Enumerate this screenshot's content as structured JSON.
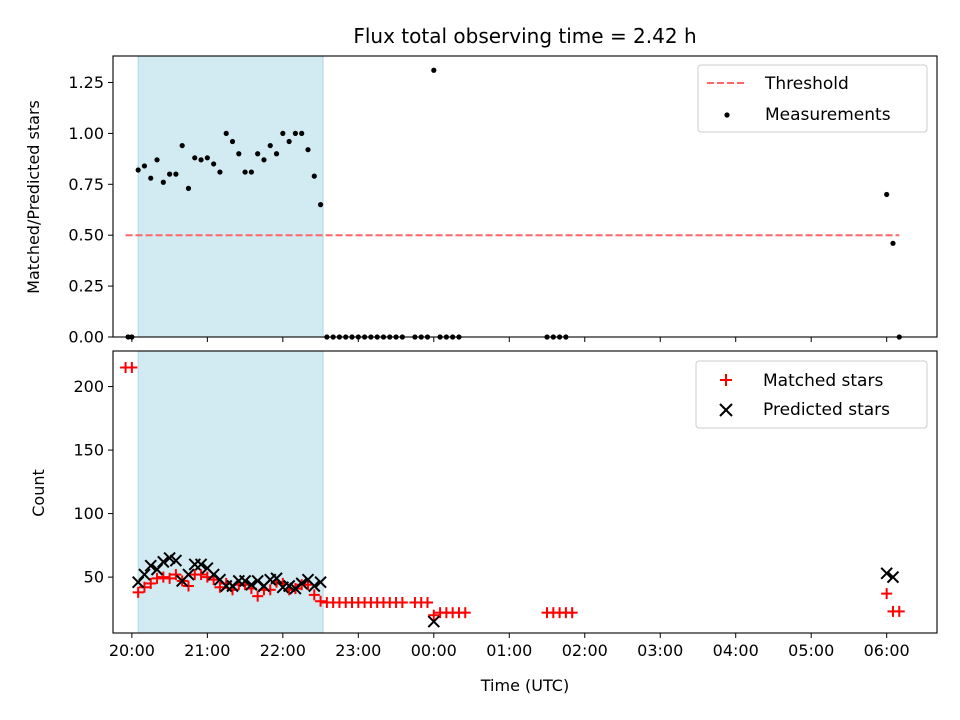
{
  "chart_data": [
    {
      "type": "scatter",
      "title": "Flux total observing time = 2.42 h",
      "xlabel": "",
      "ylabel": "Matched/Predicted stars",
      "xlim": [
        "19:45",
        "06:40"
      ],
      "ylim": [
        0,
        1.38
      ],
      "yticks": [
        0.0,
        0.25,
        0.5,
        0.75,
        1.0,
        1.25
      ],
      "ytick_labels": [
        "0.00",
        "0.25",
        "0.50",
        "0.75",
        "1.00",
        "1.25"
      ],
      "highlight_span": [
        "20:05",
        "22:32"
      ],
      "highlight_color": "#add8e6",
      "legend_position": "top-right",
      "threshold": {
        "name": "Threshold",
        "value": 0.5,
        "x_range": [
          "19:55",
          "06:10"
        ],
        "color": "#ff6666",
        "style": "dashed"
      },
      "series": [
        {
          "name": "Measurements",
          "color": "#000000",
          "marker": "dot",
          "points": [
            [
              "19:57",
              0.0
            ],
            [
              "20:00",
              0.0
            ],
            [
              "20:05",
              0.82
            ],
            [
              "20:10",
              0.84
            ],
            [
              "20:15",
              0.78
            ],
            [
              "20:20",
              0.87
            ],
            [
              "20:25",
              0.76
            ],
            [
              "20:30",
              0.8
            ],
            [
              "20:35",
              0.8
            ],
            [
              "20:40",
              0.94
            ],
            [
              "20:45",
              0.73
            ],
            [
              "20:50",
              0.88
            ],
            [
              "20:55",
              0.87
            ],
            [
              "21:00",
              0.88
            ],
            [
              "21:05",
              0.85
            ],
            [
              "21:10",
              0.81
            ],
            [
              "21:15",
              1.0
            ],
            [
              "21:20",
              0.96
            ],
            [
              "21:25",
              0.9
            ],
            [
              "21:30",
              0.81
            ],
            [
              "21:35",
              0.81
            ],
            [
              "21:40",
              0.9
            ],
            [
              "21:45",
              0.87
            ],
            [
              "21:50",
              0.94
            ],
            [
              "21:55",
              0.9
            ],
            [
              "22:00",
              1.0
            ],
            [
              "22:05",
              0.96
            ],
            [
              "22:10",
              1.0
            ],
            [
              "22:15",
              1.0
            ],
            [
              "22:20",
              0.92
            ],
            [
              "22:25",
              0.79
            ],
            [
              "22:30",
              0.65
            ],
            [
              "22:35",
              0.0
            ],
            [
              "22:40",
              0.0
            ],
            [
              "22:45",
              0.0
            ],
            [
              "22:50",
              0.0
            ],
            [
              "22:55",
              0.0
            ],
            [
              "23:00",
              0.0
            ],
            [
              "23:05",
              0.0
            ],
            [
              "23:10",
              0.0
            ],
            [
              "23:15",
              0.0
            ],
            [
              "23:20",
              0.0
            ],
            [
              "23:25",
              0.0
            ],
            [
              "23:30",
              0.0
            ],
            [
              "23:35",
              0.0
            ],
            [
              "23:45",
              0.0
            ],
            [
              "23:50",
              0.0
            ],
            [
              "23:55",
              0.0
            ],
            [
              "00:00",
              1.31
            ],
            [
              "00:05",
              0.0
            ],
            [
              "00:10",
              0.0
            ],
            [
              "00:15",
              0.0
            ],
            [
              "00:20",
              0.0
            ],
            [
              "01:30",
              0.0
            ],
            [
              "01:35",
              0.0
            ],
            [
              "01:40",
              0.0
            ],
            [
              "01:45",
              0.0
            ],
            [
              "06:00",
              0.7
            ],
            [
              "06:05",
              0.46
            ],
            [
              "06:10",
              0.0
            ]
          ]
        }
      ]
    },
    {
      "type": "scatter",
      "title": "",
      "xlabel": "Time (UTC)",
      "ylabel": "Count",
      "xlim": [
        "19:45",
        "06:40"
      ],
      "ylim": [
        6,
        228
      ],
      "yticks": [
        50,
        100,
        150,
        200
      ],
      "ytick_labels": [
        "50",
        "100",
        "150",
        "200"
      ],
      "xticks": [
        "20:00",
        "21:00",
        "22:00",
        "23:00",
        "00:00",
        "01:00",
        "02:00",
        "03:00",
        "04:00",
        "05:00",
        "06:00"
      ],
      "xtick_labels": [
        "20:00",
        "21:00",
        "22:00",
        "23:00",
        "00:00",
        "01:00",
        "02:00",
        "03:00",
        "04:00",
        "05:00",
        "06:00"
      ],
      "highlight_span": [
        "20:05",
        "22:32"
      ],
      "highlight_color": "#add8e6",
      "legend_position": "top-right",
      "series": [
        {
          "name": "Matched stars",
          "color": "#ff0000",
          "marker": "plus",
          "points": [
            [
              "19:55",
              215
            ],
            [
              "20:00",
              215
            ],
            [
              "20:05",
              38
            ],
            [
              "20:10",
              42
            ],
            [
              "20:15",
              45
            ],
            [
              "20:20",
              49
            ],
            [
              "20:25",
              50
            ],
            [
              "20:30",
              49
            ],
            [
              "20:35",
              52
            ],
            [
              "20:40",
              47
            ],
            [
              "20:45",
              43
            ],
            [
              "20:50",
              52
            ],
            [
              "20:55",
              52
            ],
            [
              "21:00",
              50
            ],
            [
              "21:05",
              48
            ],
            [
              "21:10",
              42
            ],
            [
              "21:15",
              45
            ],
            [
              "21:20",
              40
            ],
            [
              "21:25",
              44
            ],
            [
              "21:30",
              44
            ],
            [
              "21:35",
              41
            ],
            [
              "21:40",
              35
            ],
            [
              "21:45",
              40
            ],
            [
              "21:50",
              40
            ],
            [
              "21:55",
              46
            ],
            [
              "22:00",
              45
            ],
            [
              "22:05",
              40
            ],
            [
              "22:10",
              41
            ],
            [
              "22:15",
              44
            ],
            [
              "22:20",
              44
            ],
            [
              "22:25",
              36
            ],
            [
              "22:30",
              31
            ],
            [
              "22:35",
              30
            ],
            [
              "22:40",
              30
            ],
            [
              "22:45",
              30
            ],
            [
              "22:50",
              30
            ],
            [
              "22:55",
              30
            ],
            [
              "23:00",
              30
            ],
            [
              "23:05",
              30
            ],
            [
              "23:10",
              30
            ],
            [
              "23:15",
              30
            ],
            [
              "23:20",
              30
            ],
            [
              "23:25",
              30
            ],
            [
              "23:30",
              30
            ],
            [
              "23:35",
              30
            ],
            [
              "23:45",
              30
            ],
            [
              "23:50",
              30
            ],
            [
              "23:55",
              30
            ],
            [
              "00:00",
              20
            ],
            [
              "00:05",
              22
            ],
            [
              "00:10",
              22
            ],
            [
              "00:15",
              22
            ],
            [
              "00:20",
              22
            ],
            [
              "00:25",
              22
            ],
            [
              "01:30",
              22
            ],
            [
              "01:35",
              22
            ],
            [
              "01:40",
              22
            ],
            [
              "01:45",
              22
            ],
            [
              "01:50",
              22
            ],
            [
              "06:00",
              37
            ],
            [
              "06:05",
              23
            ],
            [
              "06:10",
              23
            ]
          ]
        },
        {
          "name": "Predicted stars",
          "color": "#000000",
          "marker": "x",
          "points": [
            [
              "20:05",
              46
            ],
            [
              "20:10",
              52
            ],
            [
              "20:15",
              59
            ],
            [
              "20:20",
              56
            ],
            [
              "20:25",
              62
            ],
            [
              "20:30",
              65
            ],
            [
              "20:35",
              63
            ],
            [
              "20:40",
              47
            ],
            [
              "20:45",
              52
            ],
            [
              "20:50",
              60
            ],
            [
              "20:55",
              60
            ],
            [
              "21:00",
              57
            ],
            [
              "21:05",
              52
            ],
            [
              "21:10",
              48
            ],
            [
              "21:15",
              43
            ],
            [
              "21:20",
              43
            ],
            [
              "21:25",
              47
            ],
            [
              "21:30",
              47
            ],
            [
              "21:35",
              44
            ],
            [
              "21:40",
              47
            ],
            [
              "21:45",
              43
            ],
            [
              "21:50",
              48
            ],
            [
              "21:55",
              49
            ],
            [
              "22:00",
              42
            ],
            [
              "22:05",
              43
            ],
            [
              "22:10",
              41
            ],
            [
              "22:15",
              45
            ],
            [
              "22:20",
              48
            ],
            [
              "22:25",
              43
            ],
            [
              "22:30",
              46
            ],
            [
              "00:00",
              15
            ],
            [
              "06:00",
              53
            ],
            [
              "06:05",
              50
            ]
          ]
        }
      ]
    }
  ]
}
